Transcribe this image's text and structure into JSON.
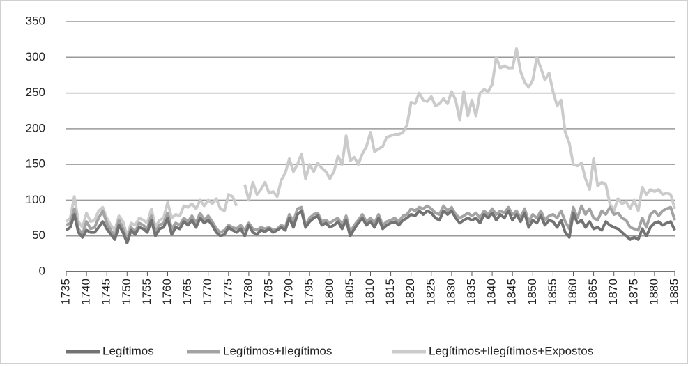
{
  "chart_data": {
    "type": "line",
    "x": [
      1735,
      1736,
      1737,
      1738,
      1739,
      1740,
      1741,
      1742,
      1743,
      1744,
      1745,
      1746,
      1747,
      1748,
      1749,
      1750,
      1751,
      1752,
      1753,
      1754,
      1755,
      1756,
      1757,
      1758,
      1759,
      1760,
      1761,
      1762,
      1763,
      1764,
      1765,
      1766,
      1767,
      1768,
      1769,
      1770,
      1771,
      1772,
      1773,
      1774,
      1775,
      1776,
      1777,
      1778,
      1779,
      1780,
      1781,
      1782,
      1783,
      1784,
      1785,
      1786,
      1787,
      1788,
      1789,
      1790,
      1791,
      1792,
      1793,
      1794,
      1795,
      1796,
      1797,
      1798,
      1799,
      1800,
      1801,
      1802,
      1803,
      1804,
      1805,
      1806,
      1807,
      1808,
      1809,
      1810,
      1811,
      1812,
      1813,
      1814,
      1815,
      1816,
      1817,
      1818,
      1819,
      1820,
      1821,
      1822,
      1823,
      1824,
      1825,
      1826,
      1827,
      1828,
      1829,
      1830,
      1831,
      1832,
      1833,
      1834,
      1835,
      1836,
      1837,
      1838,
      1839,
      1840,
      1841,
      1842,
      1843,
      1844,
      1845,
      1846,
      1847,
      1848,
      1849,
      1850,
      1851,
      1852,
      1853,
      1854,
      1855,
      1856,
      1857,
      1858,
      1859,
      1860,
      1861,
      1862,
      1863,
      1864,
      1865,
      1866,
      1867,
      1868,
      1869,
      1870,
      1871,
      1872,
      1873,
      1874,
      1875,
      1876,
      1877,
      1878,
      1879,
      1880,
      1881,
      1882,
      1883,
      1884,
      1885
    ],
    "series": [
      {
        "name": "Legítimos",
        "color": "#737373",
        "values": [
          58,
          62,
          80,
          55,
          48,
          58,
          55,
          55,
          62,
          70,
          60,
          52,
          45,
          65,
          55,
          40,
          58,
          52,
          62,
          60,
          55,
          72,
          50,
          60,
          62,
          75,
          52,
          62,
          60,
          70,
          65,
          72,
          62,
          75,
          68,
          72,
          65,
          55,
          50,
          52,
          62,
          58,
          55,
          60,
          50,
          65,
          55,
          52,
          58,
          56,
          60,
          55,
          58,
          62,
          58,
          75,
          62,
          80,
          85,
          62,
          70,
          75,
          78,
          65,
          68,
          62,
          65,
          70,
          60,
          72,
          50,
          60,
          68,
          75,
          65,
          70,
          62,
          75,
          60,
          65,
          68,
          70,
          65,
          72,
          75,
          80,
          78,
          85,
          80,
          85,
          82,
          75,
          72,
          85,
          80,
          85,
          75,
          68,
          72,
          75,
          72,
          75,
          68,
          80,
          75,
          82,
          72,
          80,
          75,
          85,
          72,
          80,
          70,
          82,
          62,
          72,
          68,
          78,
          65,
          72,
          70,
          62,
          72,
          55,
          48,
          82,
          68,
          72,
          62,
          70,
          60,
          62,
          58,
          70,
          65,
          62,
          60,
          55,
          50,
          45,
          48,
          45,
          60,
          50,
          62,
          68,
          70,
          65,
          68,
          70,
          58
        ]
      },
      {
        "name": "Legítimos+Ilegítimos",
        "color": "#a3a3a3",
        "values": [
          65,
          68,
          88,
          60,
          52,
          70,
          60,
          62,
          75,
          85,
          68,
          58,
          50,
          72,
          60,
          45,
          62,
          55,
          68,
          65,
          60,
          78,
          55,
          65,
          68,
          82,
          60,
          68,
          65,
          75,
          70,
          78,
          68,
          82,
          72,
          78,
          70,
          60,
          55,
          58,
          65,
          62,
          60,
          65,
          58,
          68,
          60,
          58,
          62,
          60,
          62,
          58,
          60,
          65,
          62,
          80,
          70,
          88,
          90,
          65,
          75,
          80,
          82,
          70,
          72,
          68,
          72,
          75,
          65,
          78,
          55,
          65,
          72,
          80,
          70,
          75,
          68,
          80,
          65,
          70,
          72,
          75,
          70,
          78,
          80,
          88,
          85,
          90,
          88,
          92,
          88,
          82,
          80,
          92,
          85,
          90,
          80,
          75,
          78,
          82,
          78,
          82,
          75,
          85,
          80,
          88,
          80,
          85,
          82,
          90,
          80,
          85,
          75,
          88,
          70,
          80,
          75,
          85,
          72,
          78,
          80,
          75,
          85,
          70,
          60,
          90,
          75,
          92,
          80,
          88,
          75,
          72,
          85,
          80,
          90,
          80,
          82,
          75,
          72,
          62,
          60,
          58,
          75,
          62,
          80,
          85,
          78,
          85,
          88,
          90,
          72
        ]
      },
      {
        "name": "Legítimos+Ilegítimos+Expostos",
        "color": "#cbcbcb",
        "values": [
          70,
          75,
          105,
          70,
          62,
          82,
          70,
          72,
          85,
          90,
          75,
          65,
          58,
          78,
          70,
          50,
          68,
          65,
          75,
          72,
          68,
          88,
          62,
          72,
          75,
          97,
          75,
          80,
          78,
          92,
          90,
          95,
          88,
          100,
          92,
          100,
          95,
          102,
          88,
          85,
          108,
          105,
          92,
          null,
          122,
          100,
          125,
          108,
          115,
          125,
          110,
          112,
          105,
          128,
          138,
          158,
          140,
          150,
          165,
          130,
          150,
          140,
          152,
          145,
          140,
          130,
          140,
          162,
          150,
          190,
          155,
          160,
          150,
          165,
          175,
          195,
          168,
          172,
          175,
          188,
          190,
          192,
          192,
          195,
          205,
          237,
          235,
          250,
          240,
          238,
          245,
          232,
          235,
          242,
          235,
          252,
          240,
          212,
          252,
          218,
          240,
          218,
          250,
          255,
          252,
          262,
          300,
          285,
          288,
          285,
          285,
          312,
          280,
          265,
          258,
          268,
          300,
          285,
          268,
          278,
          252,
          232,
          240,
          195,
          180,
          150,
          148,
          152,
          130,
          115,
          158,
          120,
          125,
          122,
          95,
          85,
          102,
          95,
          98,
          88,
          100,
          85,
          118,
          108,
          115,
          112,
          115,
          108,
          110,
          108,
          88
        ]
      }
    ],
    "xlim": [
      1735,
      1885
    ],
    "xticks": [
      1735,
      1740,
      1745,
      1750,
      1755,
      1760,
      1765,
      1770,
      1775,
      1780,
      1785,
      1790,
      1795,
      1800,
      1805,
      1810,
      1815,
      1820,
      1825,
      1830,
      1835,
      1840,
      1845,
      1850,
      1855,
      1860,
      1865,
      1870,
      1875,
      1880,
      1885
    ],
    "ylim": [
      0,
      350
    ],
    "yticks": [
      0,
      50,
      100,
      150,
      200,
      250,
      300,
      350
    ],
    "grid": true,
    "legend": "bottom"
  }
}
